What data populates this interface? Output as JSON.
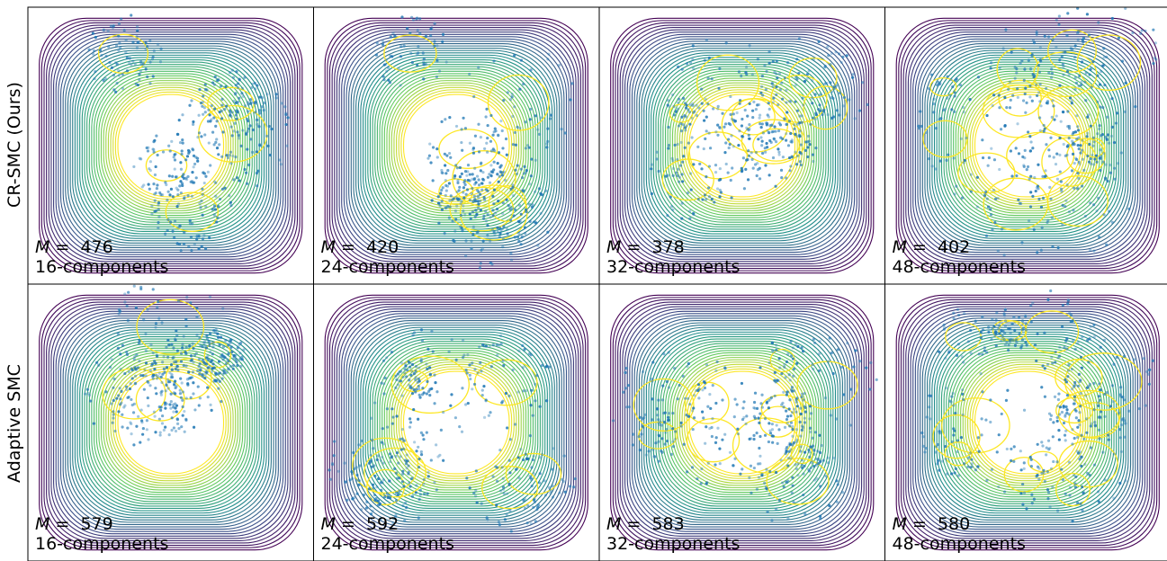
{
  "row_labels": [
    "CR-SMC (Ours)",
    "Adaptive SMC"
  ],
  "colors": {
    "points": "#1f77b4",
    "contour_outer": "#440154",
    "contour_mid": "#21918c",
    "contour_inner": "#fde725",
    "frame": "#000000"
  },
  "chart_data": [
    {
      "type": "scatter",
      "row": 0,
      "col": 0,
      "m_label": "M",
      "m_value": 476,
      "components_label": "16-components"
    },
    {
      "type": "scatter",
      "row": 0,
      "col": 1,
      "m_label": "M",
      "m_value": 420,
      "components_label": "24-components"
    },
    {
      "type": "scatter",
      "row": 0,
      "col": 2,
      "m_label": "M",
      "m_value": 378,
      "components_label": "32-components"
    },
    {
      "type": "scatter",
      "row": 0,
      "col": 3,
      "m_label": "M",
      "m_value": 402,
      "components_label": "48-components"
    },
    {
      "type": "scatter",
      "row": 1,
      "col": 0,
      "m_label": "M",
      "m_value": 579,
      "components_label": "16-components"
    },
    {
      "type": "scatter",
      "row": 1,
      "col": 1,
      "m_label": "M",
      "m_value": 592,
      "components_label": "24-components"
    },
    {
      "type": "scatter",
      "row": 1,
      "col": 2,
      "m_label": "M",
      "m_value": 583,
      "components_label": "32-components"
    },
    {
      "type": "scatter",
      "row": 1,
      "col": 3,
      "m_label": "M",
      "m_value": 580,
      "components_label": "48-components"
    }
  ]
}
